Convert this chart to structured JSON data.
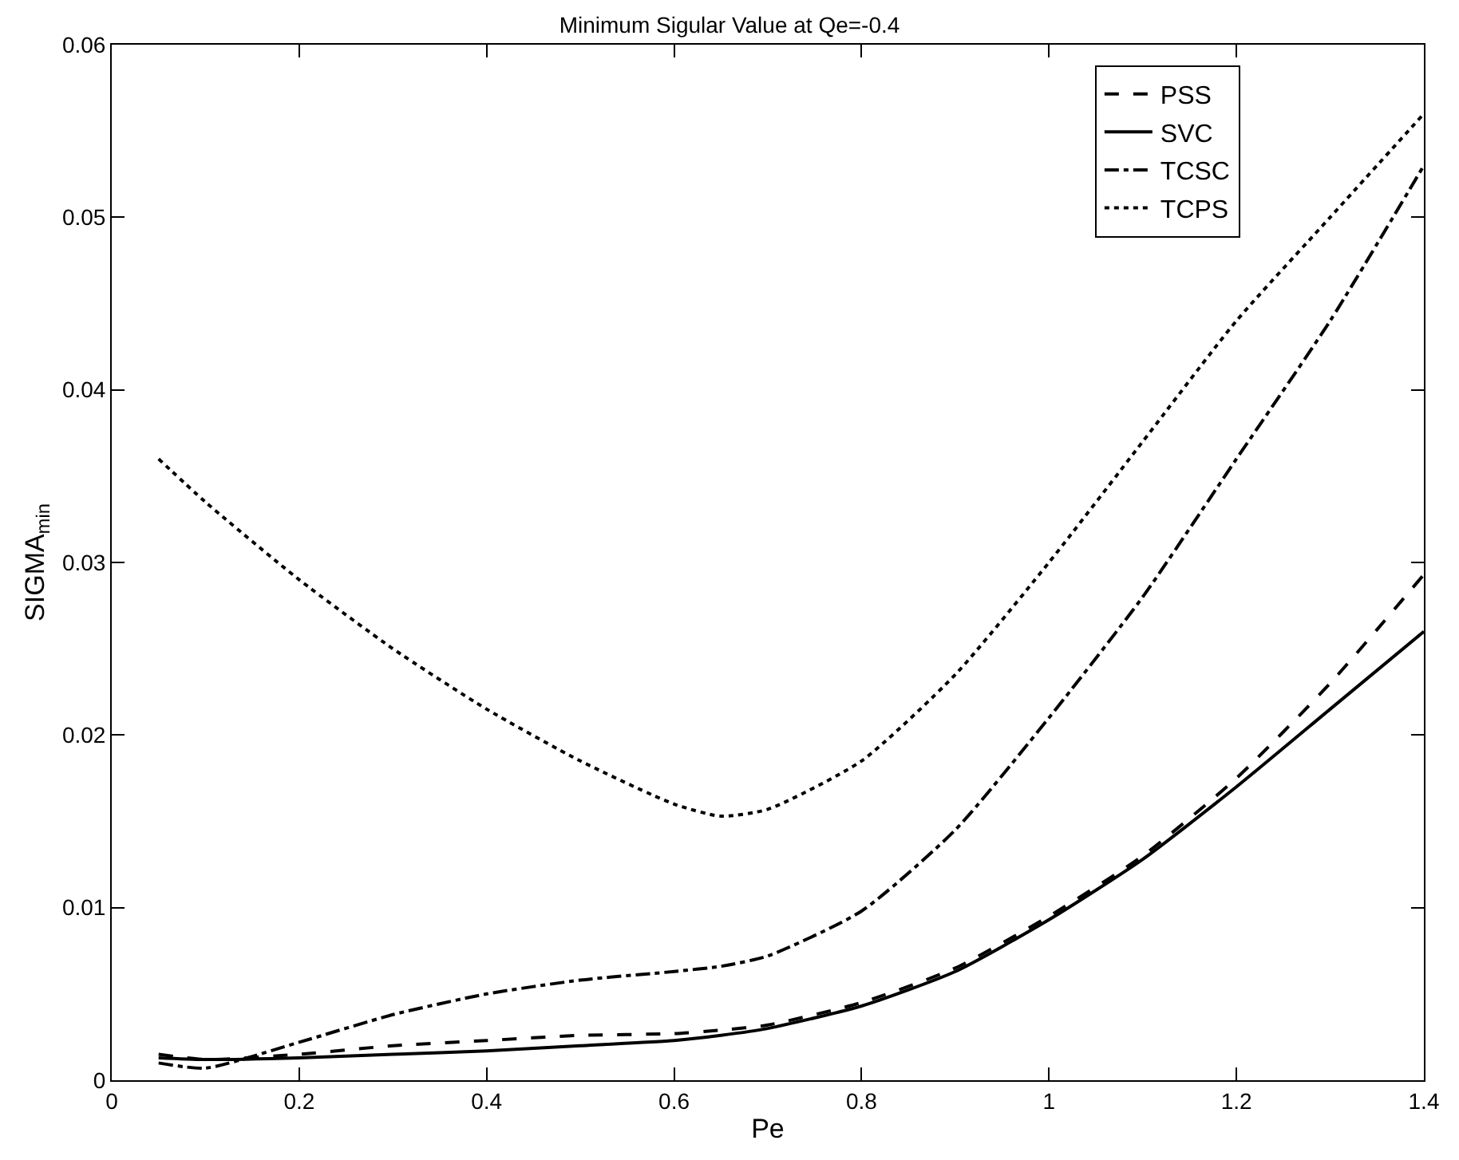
{
  "chart_data": {
    "type": "line",
    "title": "Minimum Sigular Value at Qe=-0.4",
    "xlabel": "Pe",
    "ylabel": "SIGMA$_{min}$",
    "x": [
      0.05,
      0.1,
      0.2,
      0.3,
      0.4,
      0.5,
      0.6,
      0.65,
      0.7,
      0.8,
      0.9,
      1.0,
      1.1,
      1.2,
      1.3,
      1.4
    ],
    "series": [
      {
        "name": "PSS",
        "color": "#000000",
        "line_style": "dashed",
        "values": [
          0.0015,
          0.0012,
          0.0015,
          0.002,
          0.0023,
          0.0026,
          0.0027,
          0.0029,
          0.0032,
          0.0045,
          0.0065,
          0.0095,
          0.013,
          0.0175,
          0.023,
          0.0293
        ]
      },
      {
        "name": "SVC",
        "color": "#000000",
        "line_style": "solid",
        "values": [
          0.0013,
          0.0012,
          0.0013,
          0.0015,
          0.0017,
          0.002,
          0.0023,
          0.0026,
          0.003,
          0.0043,
          0.0063,
          0.0093,
          0.0128,
          0.017,
          0.0215,
          0.026
        ]
      },
      {
        "name": "TCSC",
        "color": "#000000",
        "line_style": "dashdot",
        "values": [
          0.001,
          0.0007,
          0.0022,
          0.0038,
          0.005,
          0.0058,
          0.0063,
          0.0066,
          0.0072,
          0.0098,
          0.0145,
          0.021,
          0.028,
          0.036,
          0.044,
          0.053
        ]
      },
      {
        "name": "TCPS",
        "color": "#000000",
        "line_style": "dotted",
        "values": [
          0.036,
          0.0335,
          0.029,
          0.025,
          0.0215,
          0.0185,
          0.016,
          0.0153,
          0.0157,
          0.0185,
          0.0235,
          0.03,
          0.037,
          0.044,
          0.05,
          0.056
        ]
      }
    ],
    "xlim": [
      0,
      1.4
    ],
    "xticks": [
      0,
      0.2,
      0.4,
      0.6,
      0.8,
      1,
      1.2,
      1.4
    ],
    "ylim": [
      0,
      0.06
    ],
    "yticks": [
      0,
      0.01,
      0.02,
      0.03,
      0.04,
      0.05,
      0.06
    ],
    "grid": false,
    "legend": "top right",
    "marker": "none"
  }
}
